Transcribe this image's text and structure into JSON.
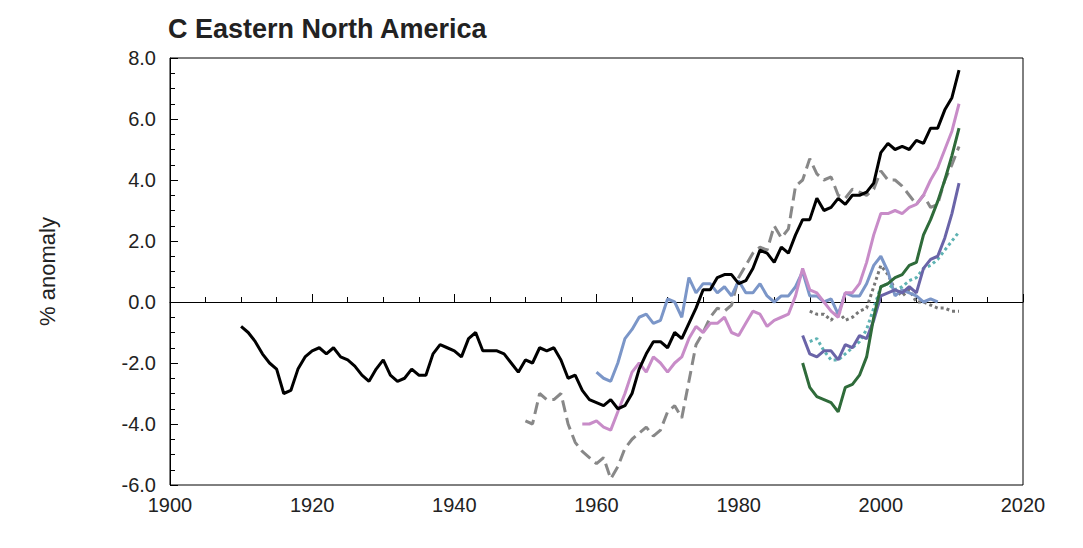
{
  "chart_data": {
    "type": "line",
    "title": "C Eastern North America",
    "y_label": "% anomaly",
    "xlim": [
      1900,
      2020
    ],
    "xticks": [
      1900,
      1920,
      1940,
      1960,
      1980,
      2000,
      2020
    ],
    "ylim": [
      -6,
      8
    ],
    "yticks": [
      {
        "value": -6,
        "label": "-6.0"
      },
      {
        "value": -4,
        "label": "-4.0"
      },
      {
        "value": -2,
        "label": "-2.0"
      },
      {
        "value": 0,
        "label": "0.0"
      },
      {
        "value": 2,
        "label": "2.0"
      },
      {
        "value": 4,
        "label": "4.0"
      },
      {
        "value": 6,
        "label": "6.0"
      },
      {
        "value": 8,
        "label": "8.0"
      }
    ],
    "grid": false,
    "x": [
      1910,
      1911,
      1912,
      1913,
      1914,
      1915,
      1916,
      1917,
      1918,
      1919,
      1920,
      1921,
      1922,
      1923,
      1924,
      1925,
      1926,
      1927,
      1928,
      1929,
      1930,
      1931,
      1932,
      1933,
      1934,
      1935,
      1936,
      1937,
      1938,
      1939,
      1940,
      1941,
      1942,
      1943,
      1944,
      1945,
      1946,
      1947,
      1948,
      1949,
      1950,
      1951,
      1952,
      1953,
      1954,
      1955,
      1956,
      1957,
      1958,
      1959,
      1960,
      1961,
      1962,
      1963,
      1964,
      1965,
      1966,
      1967,
      1968,
      1969,
      1970,
      1971,
      1972,
      1973,
      1974,
      1975,
      1976,
      1977,
      1978,
      1979,
      1980,
      1981,
      1982,
      1983,
      1984,
      1985,
      1986,
      1987,
      1988,
      1989,
      1990,
      1991,
      1992,
      1993,
      1994,
      1995,
      1996,
      1997,
      1998,
      1999,
      2000,
      2001,
      2002,
      2003,
      2004,
      2005,
      2006,
      2007,
      2008,
      2009,
      2010,
      2011
    ],
    "series": [
      {
        "color": "#888888",
        "line_style": "dashed",
        "values": [
          null,
          null,
          null,
          null,
          null,
          null,
          null,
          null,
          null,
          null,
          null,
          null,
          null,
          null,
          null,
          null,
          null,
          null,
          null,
          null,
          null,
          null,
          null,
          null,
          null,
          null,
          null,
          null,
          null,
          null,
          null,
          null,
          null,
          null,
          null,
          null,
          null,
          null,
          null,
          null,
          -3.9,
          -4.0,
          -3.0,
          -3.2,
          -3.2,
          -3.0,
          -4.0,
          -4.6,
          -4.9,
          -5.1,
          -5.3,
          -5.1,
          -5.8,
          -5.4,
          -4.8,
          -4.5,
          -4.3,
          -4.1,
          -4.4,
          -4.2,
          -3.6,
          -3.4,
          -3.8,
          -2.6,
          -1.4,
          -1.0,
          -0.5,
          -0.2,
          -0.3,
          -0.1,
          0.8,
          1.2,
          1.6,
          1.8,
          1.7,
          2.5,
          2.1,
          2.4,
          3.8,
          4.0,
          4.7,
          4.2,
          4.0,
          4.1,
          3.5,
          3.4,
          3.7,
          3.6,
          3.5,
          3.7,
          4.3,
          4.0,
          4.0,
          3.8,
          3.5,
          3.2,
          3.5,
          3.1,
          3.2,
          4.0,
          4.5,
          5.1
        ]
      },
      {
        "color": "#777777",
        "line_style": "dotted",
        "values": [
          null,
          null,
          null,
          null,
          null,
          null,
          null,
          null,
          null,
          null,
          null,
          null,
          null,
          null,
          null,
          null,
          null,
          null,
          null,
          null,
          null,
          null,
          null,
          null,
          null,
          null,
          null,
          null,
          null,
          null,
          null,
          null,
          null,
          null,
          null,
          null,
          null,
          null,
          null,
          null,
          null,
          null,
          null,
          null,
          null,
          null,
          null,
          null,
          null,
          null,
          null,
          null,
          null,
          null,
          null,
          null,
          null,
          null,
          null,
          null,
          null,
          null,
          null,
          null,
          null,
          null,
          null,
          null,
          null,
          null,
          null,
          null,
          null,
          null,
          null,
          null,
          null,
          null,
          null,
          null,
          -0.3,
          -0.4,
          -0.4,
          -0.6,
          -0.3,
          -0.6,
          -0.5,
          -0.3,
          -0.2,
          0.5,
          1.2,
          0.9,
          0.4,
          0.2,
          0.4,
          0.0,
          0.0,
          -0.1,
          -0.2,
          -0.2,
          -0.3,
          -0.3
        ]
      },
      {
        "color": "#7b96c8",
        "line_style": "solid",
        "values": [
          null,
          null,
          null,
          null,
          null,
          null,
          null,
          null,
          null,
          null,
          null,
          null,
          null,
          null,
          null,
          null,
          null,
          null,
          null,
          null,
          null,
          null,
          null,
          null,
          null,
          null,
          null,
          null,
          null,
          null,
          null,
          null,
          null,
          null,
          null,
          null,
          null,
          null,
          null,
          null,
          null,
          null,
          null,
          null,
          null,
          null,
          null,
          null,
          null,
          null,
          -2.3,
          -2.5,
          -2.6,
          -2.0,
          -1.2,
          -0.9,
          -0.5,
          -0.4,
          -0.7,
          -0.6,
          0.1,
          0.0,
          -0.5,
          0.8,
          0.3,
          0.6,
          0.6,
          0.3,
          0.5,
          0.2,
          0.7,
          0.3,
          0.3,
          0.6,
          0.2,
          0.0,
          0.2,
          0.2,
          0.5,
          1.0,
          0.2,
          0.2,
          0.0,
          0.1,
          -0.4,
          0.3,
          0.2,
          0.2,
          0.6,
          1.2,
          1.5,
          1.0,
          0.2,
          0.4,
          0.3,
          0.2,
          0.0,
          0.1,
          0.0,
          null,
          null,
          null
        ]
      },
      {
        "color": "#c88cc8",
        "line_style": "solid",
        "values": [
          null,
          null,
          null,
          null,
          null,
          null,
          null,
          null,
          null,
          null,
          null,
          null,
          null,
          null,
          null,
          null,
          null,
          null,
          null,
          null,
          null,
          null,
          null,
          null,
          null,
          null,
          null,
          null,
          null,
          null,
          null,
          null,
          null,
          null,
          null,
          null,
          null,
          null,
          null,
          null,
          null,
          null,
          null,
          null,
          null,
          null,
          null,
          null,
          -4.0,
          -4.0,
          -3.9,
          -4.1,
          -4.2,
          -3.6,
          -3.0,
          -2.3,
          -2.0,
          -2.3,
          -1.8,
          -2.0,
          -2.3,
          -2.0,
          -1.8,
          -1.2,
          -0.8,
          -1.0,
          -0.7,
          -0.7,
          -0.5,
          -1.0,
          -1.1,
          -0.7,
          -0.3,
          -0.4,
          -0.8,
          -0.6,
          -0.5,
          -0.4,
          0.2,
          1.1,
          0.4,
          0.3,
          0.0,
          -0.3,
          -0.5,
          0.3,
          0.3,
          0.6,
          1.3,
          2.2,
          2.9,
          2.9,
          3.0,
          2.9,
          3.1,
          3.2,
          3.5,
          4.0,
          4.4,
          5.0,
          5.6,
          6.5
        ]
      },
      {
        "color": "#5fb3b3",
        "line_style": "dotted",
        "values": [
          null,
          null,
          null,
          null,
          null,
          null,
          null,
          null,
          null,
          null,
          null,
          null,
          null,
          null,
          null,
          null,
          null,
          null,
          null,
          null,
          null,
          null,
          null,
          null,
          null,
          null,
          null,
          null,
          null,
          null,
          null,
          null,
          null,
          null,
          null,
          null,
          null,
          null,
          null,
          null,
          null,
          null,
          null,
          null,
          null,
          null,
          null,
          null,
          null,
          null,
          null,
          null,
          null,
          null,
          null,
          null,
          null,
          null,
          null,
          null,
          null,
          null,
          null,
          null,
          null,
          null,
          null,
          null,
          null,
          null,
          null,
          null,
          null,
          null,
          null,
          null,
          null,
          null,
          null,
          null,
          -1.3,
          -1.2,
          -1.6,
          -1.9,
          -1.9,
          -1.7,
          -1.5,
          -1.3,
          -0.9,
          -0.2,
          0.5,
          0.6,
          0.4,
          0.5,
          0.7,
          0.8,
          1.1,
          1.2,
          1.4,
          1.7,
          2.0,
          2.3
        ]
      },
      {
        "color": "#6a64a8",
        "line_style": "solid",
        "values": [
          null,
          null,
          null,
          null,
          null,
          null,
          null,
          null,
          null,
          null,
          null,
          null,
          null,
          null,
          null,
          null,
          null,
          null,
          null,
          null,
          null,
          null,
          null,
          null,
          null,
          null,
          null,
          null,
          null,
          null,
          null,
          null,
          null,
          null,
          null,
          null,
          null,
          null,
          null,
          null,
          null,
          null,
          null,
          null,
          null,
          null,
          null,
          null,
          null,
          null,
          null,
          null,
          null,
          null,
          null,
          null,
          null,
          null,
          null,
          null,
          null,
          null,
          null,
          null,
          null,
          null,
          null,
          null,
          null,
          null,
          null,
          null,
          null,
          null,
          null,
          null,
          null,
          null,
          null,
          -1.1,
          -1.7,
          -1.8,
          -1.6,
          -1.6,
          -1.9,
          -1.4,
          -1.5,
          -1.1,
          -1.2,
          -0.6,
          0.2,
          0.3,
          0.4,
          0.3,
          0.5,
          0.3,
          1.1,
          1.4,
          1.5,
          2.1,
          2.9,
          3.9
        ]
      },
      {
        "color": "#2f6b3a",
        "line_style": "solid",
        "values": [
          null,
          null,
          null,
          null,
          null,
          null,
          null,
          null,
          null,
          null,
          null,
          null,
          null,
          null,
          null,
          null,
          null,
          null,
          null,
          null,
          null,
          null,
          null,
          null,
          null,
          null,
          null,
          null,
          null,
          null,
          null,
          null,
          null,
          null,
          null,
          null,
          null,
          null,
          null,
          null,
          null,
          null,
          null,
          null,
          null,
          null,
          null,
          null,
          null,
          null,
          null,
          null,
          null,
          null,
          null,
          null,
          null,
          null,
          null,
          null,
          null,
          null,
          null,
          null,
          null,
          null,
          null,
          null,
          null,
          null,
          null,
          null,
          null,
          null,
          null,
          null,
          null,
          null,
          null,
          -2.0,
          -2.8,
          -3.1,
          -3.2,
          -3.3,
          -3.6,
          -2.8,
          -2.7,
          -2.4,
          -1.8,
          -0.5,
          0.5,
          0.6,
          0.8,
          0.9,
          1.2,
          1.3,
          2.2,
          2.7,
          3.3,
          4.0,
          4.8,
          5.7
        ]
      },
      {
        "color": "#000000",
        "line_style": "solid",
        "values": [
          -0.8,
          -1.0,
          -1.3,
          -1.7,
          -2.0,
          -2.2,
          -3.0,
          -2.9,
          -2.2,
          -1.8,
          -1.6,
          -1.5,
          -1.7,
          -1.5,
          -1.8,
          -1.9,
          -2.1,
          -2.4,
          -2.6,
          -2.2,
          -1.9,
          -2.4,
          -2.6,
          -2.5,
          -2.2,
          -2.4,
          -2.4,
          -1.7,
          -1.4,
          -1.5,
          -1.6,
          -1.8,
          -1.2,
          -1.0,
          -1.6,
          -1.6,
          -1.6,
          -1.7,
          -2.0,
          -2.3,
          -1.9,
          -2.0,
          -1.5,
          -1.6,
          -1.5,
          -1.9,
          -2.5,
          -2.4,
          -2.9,
          -3.2,
          -3.3,
          -3.4,
          -3.2,
          -3.5,
          -3.4,
          -3.0,
          -2.2,
          -1.7,
          -1.3,
          -1.3,
          -1.5,
          -1.0,
          -1.2,
          -0.7,
          -0.2,
          0.4,
          0.4,
          0.8,
          0.9,
          0.9,
          0.6,
          0.7,
          1.1,
          1.7,
          1.6,
          1.3,
          1.8,
          1.6,
          2.2,
          2.7,
          2.7,
          3.4,
          3.0,
          3.1,
          3.4,
          3.2,
          3.5,
          3.5,
          3.6,
          3.9,
          4.9,
          5.2,
          5.0,
          5.1,
          5.0,
          5.3,
          5.2,
          5.7,
          5.7,
          6.3,
          6.7,
          7.6
        ]
      }
    ]
  }
}
